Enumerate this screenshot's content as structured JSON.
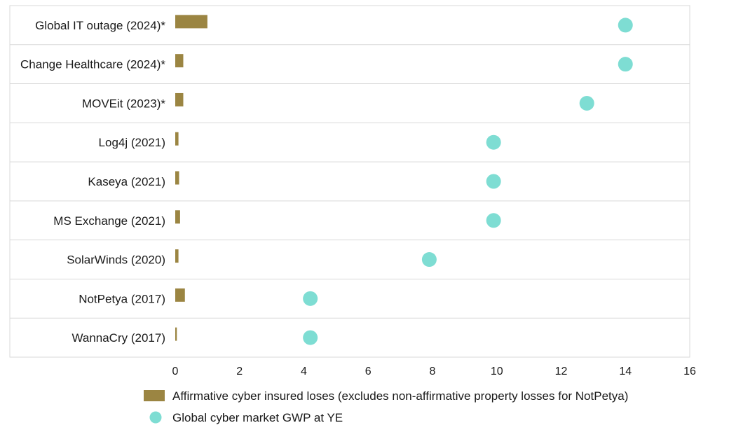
{
  "chart_data": {
    "type": "bar+dot",
    "categories": [
      "Global IT outage (2024)*",
      "Change Healthcare (2024)*",
      "MOVEit (2023)*",
      "Log4j (2021)",
      "Kaseya (2021)",
      "MS Exchange (2021)",
      "SolarWinds (2020)",
      "NotPetya (2017)",
      "WannaCry (2017)"
    ],
    "series": [
      {
        "name": "Affirmative cyber insured loses (excludes non-affirmative property losses for NotPetya)",
        "kind": "bar",
        "color": "#9B8542",
        "values": [
          1.0,
          0.25,
          0.25,
          0.1,
          0.12,
          0.15,
          0.1,
          0.3,
          0.05
        ]
      },
      {
        "name": "Global cyber market GWP at YE",
        "kind": "dot",
        "color": "#7EDDD3",
        "values": [
          14.0,
          14.0,
          12.8,
          9.9,
          9.9,
          9.9,
          7.9,
          4.2,
          4.2
        ]
      }
    ],
    "xlim": [
      0,
      16
    ],
    "xticks": [
      "0",
      "2",
      "4",
      "6",
      "8",
      "10",
      "12",
      "14",
      "16"
    ],
    "xlabel": "",
    "ylabel": "",
    "grid": "horizontal",
    "legend": "bottom"
  }
}
